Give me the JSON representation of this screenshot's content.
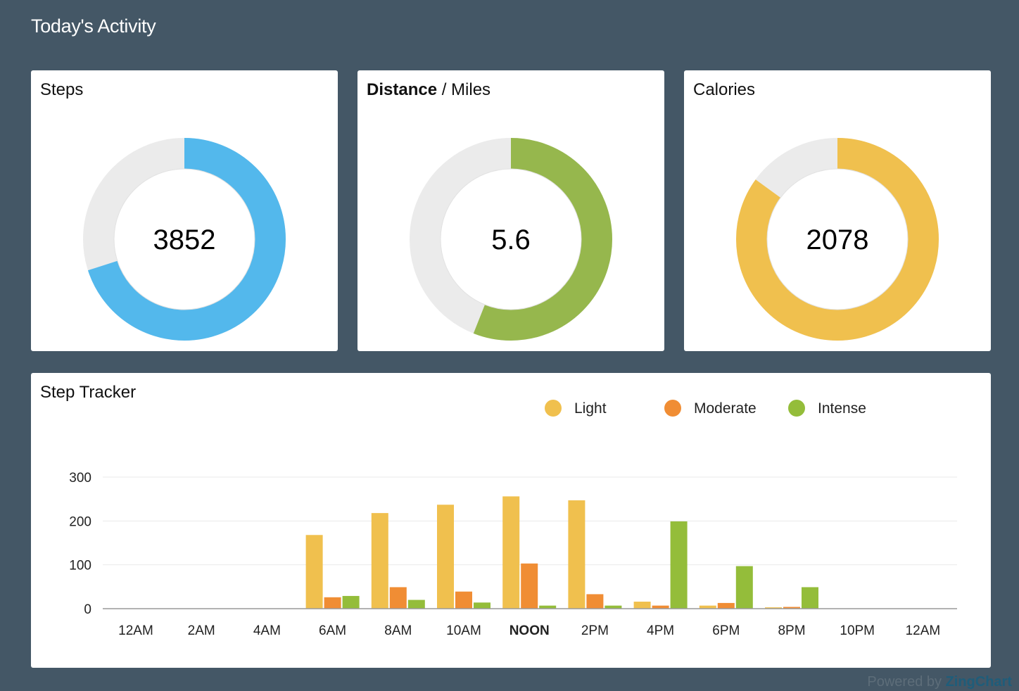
{
  "page": {
    "title": "Today's Activity",
    "powered_by": "Powered by",
    "brand": "ZingChart"
  },
  "cards": [
    {
      "title_bold": "",
      "title_rest": "Steps",
      "value_label": "3852",
      "fill_fraction": 0.7,
      "color": "#53b8ec",
      "track_color": "#ebebeb"
    },
    {
      "title_bold": "Distance",
      "title_rest": " / Miles",
      "value_label": "5.6",
      "fill_fraction": 0.56,
      "color": "#96b74d",
      "track_color": "#ebebeb"
    },
    {
      "title_bold": "",
      "title_rest": "Calories",
      "value_label": "2078",
      "fill_fraction": 0.85,
      "color": "#f0c04e",
      "track_color": "#ebebeb"
    }
  ],
  "chart_data": {
    "type": "bar",
    "title": "Step Tracker",
    "categories": [
      "12AM",
      "2AM",
      "4AM",
      "6AM",
      "8AM",
      "10AM",
      "NOON",
      "2PM",
      "4PM",
      "6PM",
      "8PM",
      "10PM",
      "12AM"
    ],
    "highlight_category": "NOON",
    "series": [
      {
        "name": "Light",
        "color": "#f0c04e",
        "values": [
          0,
          0,
          0,
          168,
          218,
          237,
          256,
          247,
          16,
          7,
          3,
          0,
          0
        ]
      },
      {
        "name": "Moderate",
        "color": "#f08d34",
        "values": [
          0,
          0,
          0,
          26,
          49,
          39,
          103,
          33,
          7,
          13,
          4,
          0,
          0
        ]
      },
      {
        "name": "Intense",
        "color": "#94bd3a",
        "values": [
          0,
          0,
          0,
          29,
          20,
          14,
          7,
          7,
          199,
          97,
          49,
          0,
          0
        ]
      }
    ],
    "ylim": [
      0,
      300
    ],
    "yticks": [
      0,
      100,
      200,
      300
    ],
    "grid": true,
    "legend_position": "top-right",
    "xlabel": "",
    "ylabel": ""
  }
}
